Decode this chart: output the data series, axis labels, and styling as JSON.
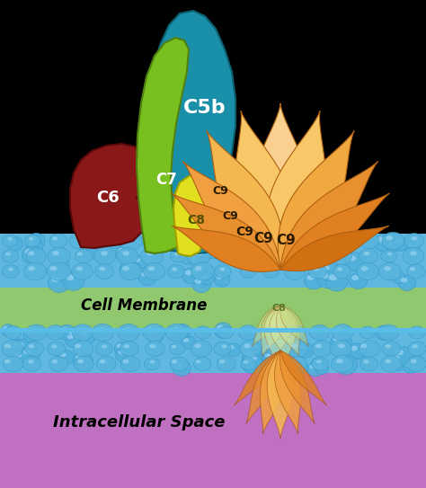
{
  "bg_black": "#000000",
  "c5b_color": "#1e8faa",
  "c7_color": "#78c020",
  "c6_color": "#8b1a1a",
  "c8_color": "#e8e820",
  "c9_dark": "#e8902a",
  "c9_mid": "#f0a840",
  "c9_light": "#f8d090",
  "c9_pale": "#fae0b8",
  "membrane_blue_top": "#60b8e0",
  "membrane_green": "#90c870",
  "membrane_blue_bot": "#60b8e0",
  "intracellular": "#c070c0",
  "bubble_fill": "#4aaad8",
  "bubble_dark": "#3090c0",
  "bubble_hi": "#90d8f8",
  "title_cell_membrane": "Cell Membrane",
  "title_intracellular": "Intracellular Space",
  "label_c5b": "C5b",
  "label_c7": "C7",
  "label_c6": "C6",
  "label_c8": "C8",
  "label_c9": "C9",
  "white": "#ffffff",
  "black": "#000000",
  "dark_brown": "#2a1a00"
}
